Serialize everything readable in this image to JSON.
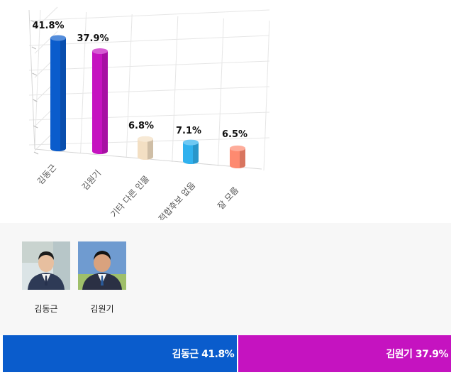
{
  "chart_data": {
    "type": "bar",
    "style": "3d-cylinder",
    "categories": [
      "김동근",
      "김원기",
      "기타 다른 인물",
      "적합후보 없음",
      "잘 모름"
    ],
    "values": [
      41.8,
      37.9,
      6.8,
      7.1,
      6.5
    ],
    "value_labels": [
      "41.8%",
      "37.9%",
      "6.8%",
      "7.1%",
      "6.5%"
    ],
    "colors": [
      "#0a5ccc",
      "#c513c0",
      "#f3dfc3",
      "#30b1ee",
      "#fe8a70"
    ],
    "ylim": [
      0,
      50
    ],
    "grid": true,
    "title": "",
    "xlabel": "",
    "ylabel": ""
  },
  "candidates": [
    {
      "name": "김동근",
      "photo": "portrait-photo"
    },
    {
      "name": "김원기",
      "photo": "portrait-photo"
    }
  ],
  "result_bar": [
    {
      "label": "김동근 41.8%",
      "value": 41.8,
      "color": "#0a5ccc"
    },
    {
      "label": "김원기 37.9%",
      "value": 37.9,
      "color": "#c513c0"
    }
  ]
}
